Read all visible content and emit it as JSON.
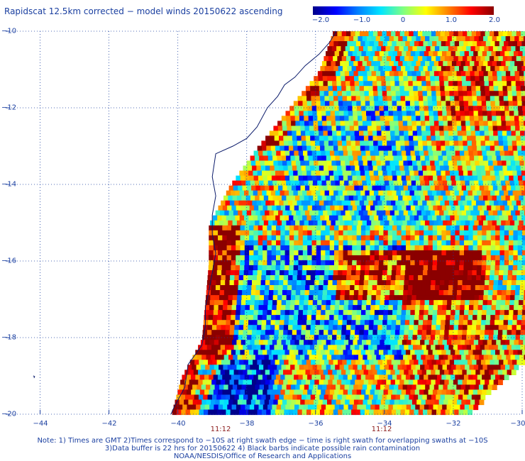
{
  "title": "Rapidscat 12.5km corrected − model winds 20150622 ascending",
  "colorbar": {
    "ticks": [
      "−2.0",
      "−1.0",
      "0",
      "1.0",
      "2.0"
    ],
    "range": [
      -2.0,
      2.0
    ],
    "colors": [
      "#00008b",
      "#0000ff",
      "#0080ff",
      "#00e5ff",
      "#80ff80",
      "#ffff00",
      "#ff8000",
      "#ff0000",
      "#8b0000"
    ]
  },
  "axes": {
    "lat_labels": [
      "−10",
      "−12",
      "−14",
      "−16",
      "−18",
      "−20"
    ],
    "lat_values": [
      -10,
      -12,
      -14,
      -16,
      -18,
      -20
    ],
    "lon_labels": [
      "−44",
      "−42",
      "−40",
      "−38",
      "−36",
      "−34",
      "−32",
      "−30"
    ],
    "lon_values": [
      -44,
      -42,
      -40,
      -38,
      -36,
      -34,
      -32,
      -30
    ],
    "lat_range": [
      -20,
      -10
    ],
    "lon_range": [
      -45,
      -30
    ],
    "grid": "dotted"
  },
  "time_labels": [
    {
      "text": "11:12",
      "lon": -38.8
    },
    {
      "text": "11:12",
      "lon": -34.1
    }
  ],
  "notes": [
    "Note: 1) Times are GMT 2)Times correspond to −10S at right swath edge − time is right swath for overlapping swaths at −10S",
    "3)Data buffer is 22 hrs for 20150622 4) Black barbs indicate possible rain contamination",
    "NOAA/NESDIS/Office of Research and Applications"
  ]
}
